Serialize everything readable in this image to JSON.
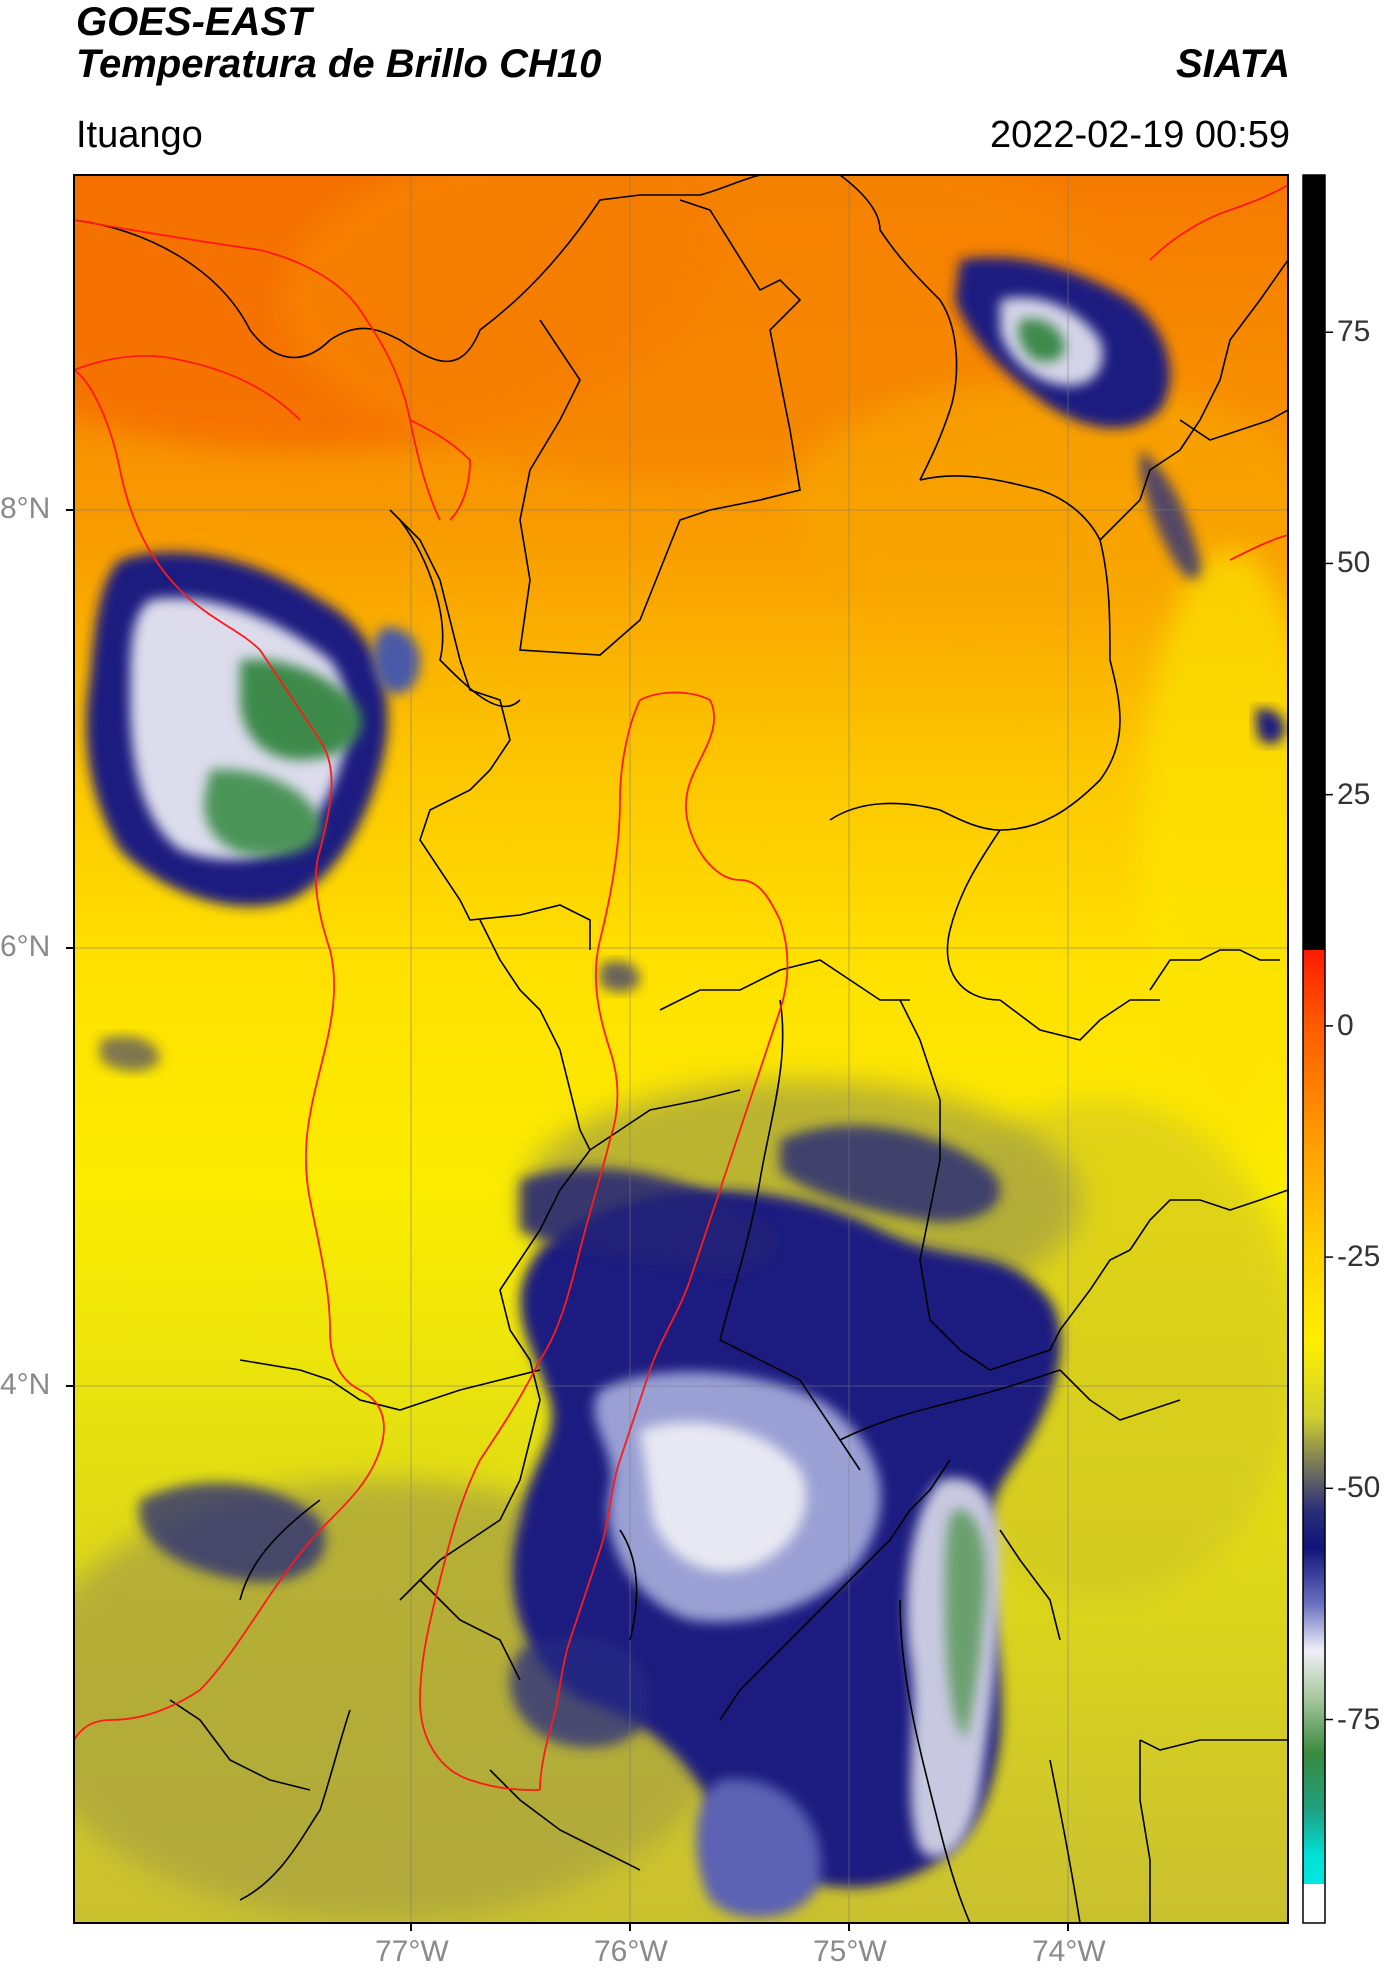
{
  "header": {
    "title": "GOES-EAST",
    "subtitle": "Temperatura de Brillo CH10",
    "org": "SIATA",
    "location": "Ituango",
    "datetime": "2022-02-19 00:59"
  },
  "map": {
    "lat_ticks": [
      "8°N",
      "6°N",
      "4°N"
    ],
    "lon_ticks": [
      "77°W",
      "76°W",
      "75°W",
      "74°W"
    ],
    "extent": {
      "lon": [
        -78.55,
        -73.0
      ],
      "lat": [
        2.1,
        9.5
      ]
    },
    "colors": {
      "border": "#000000",
      "basin": "#ff0000"
    }
  },
  "colorbar": {
    "ticks": [
      "75",
      "50",
      "25",
      "0",
      "-25",
      "-50",
      "-75"
    ],
    "values": [
      75,
      50,
      25,
      0,
      -25,
      -50,
      -75
    ],
    "range": [
      -97,
      92
    ]
  }
}
